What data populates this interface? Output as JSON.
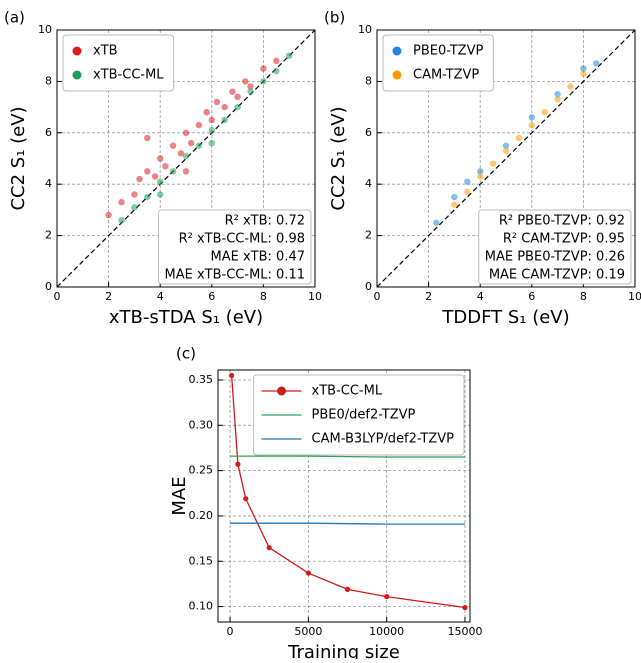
{
  "chart_data": [
    {
      "type": "scatter",
      "label": "(a)",
      "xlabel": "xTB-sTDA S₁ (eV)",
      "ylabel": "CC2 S₁ (eV)",
      "xlim": [
        0,
        10
      ],
      "ylim": [
        0,
        10
      ],
      "xticks": [
        0,
        2,
        4,
        6,
        8,
        10
      ],
      "yticks": [
        0,
        2,
        4,
        6,
        8,
        10
      ],
      "grid": true,
      "legend": "upper left",
      "series": [
        {
          "name": "xTB",
          "color": "#dd1c1c",
          "x": [
            2,
            2.5,
            3,
            3.2,
            3.5,
            3.8,
            4,
            4.2,
            4.5,
            4.8,
            5,
            5.2,
            5.5,
            5.8,
            6,
            6.2,
            6.5,
            6.8,
            7,
            7.3,
            7.5,
            8,
            8.5,
            3.5,
            5
          ],
          "values": [
            2.8,
            3.3,
            3.6,
            4.2,
            4.5,
            4.3,
            5,
            4.7,
            5.5,
            5.2,
            6,
            5.6,
            6.3,
            6.8,
            6.5,
            7.2,
            7,
            7.6,
            7.4,
            8,
            7.8,
            8.5,
            8.8,
            5.8,
            4.5
          ]
        },
        {
          "name": "xTB-CC-ML",
          "color": "#1a9e5a",
          "x": [
            2.5,
            3,
            3.5,
            4,
            4.5,
            5,
            5.5,
            6,
            6.5,
            7,
            7.5,
            8,
            8.5,
            9,
            4,
            6
          ],
          "values": [
            2.6,
            3.1,
            3.5,
            4.1,
            4.5,
            5.1,
            5.5,
            6.1,
            6.5,
            7,
            7.6,
            8,
            8.4,
            9,
            3.6,
            5.6
          ]
        }
      ],
      "annotations": [
        "R² xTB: 0.72",
        "R² xTB-CC-ML: 0.98",
        "MAE xTB: 0.47",
        "MAE xTB-CC-ML: 0.11"
      ]
    },
    {
      "type": "scatter",
      "label": "(b)",
      "xlabel": "TDDFT S₁ (eV)",
      "ylabel": "CC2 S₁ (eV)",
      "xlim": [
        0,
        10
      ],
      "ylim": [
        0,
        10
      ],
      "xticks": [
        0,
        2,
        4,
        6,
        8,
        10
      ],
      "yticks": [
        0,
        2,
        4,
        6,
        8,
        10
      ],
      "grid": true,
      "legend": "upper left",
      "series": [
        {
          "name": "PBE0-TZVP",
          "color": "#1f88e0",
          "x": [
            2.3,
            3,
            3.5,
            4,
            5,
            6,
            7,
            8,
            8.5
          ],
          "values": [
            2.5,
            3.5,
            4.1,
            4.5,
            5.5,
            6.6,
            7.5,
            8.5,
            8.7
          ]
        },
        {
          "name": "CAM-TZVP",
          "color": "#ff9900",
          "x": [
            3,
            3.5,
            4,
            4.5,
            5,
            5.5,
            6,
            6.5,
            7,
            7.5,
            8
          ],
          "values": [
            3.2,
            3.7,
            4.3,
            4.8,
            5.3,
            5.8,
            6.3,
            6.8,
            7.3,
            7.8,
            8.3
          ]
        }
      ],
      "annotations": [
        "R² PBE0-TZVP: 0.92",
        "R² CAM-TZVP: 0.95",
        "MAE PBE0-TZVP: 0.26",
        "MAE CAM-TZVP: 0.19"
      ]
    },
    {
      "type": "line",
      "label": "(c)",
      "xlabel": "Training size",
      "ylabel": "MAE",
      "xlim": [
        -770,
        15320
      ],
      "ylim": [
        0.083,
        0.361
      ],
      "xticks": [
        0,
        5000,
        10000,
        15000
      ],
      "yticks": [
        {
          "value": 0.1,
          "label": "0.10"
        },
        {
          "value": 0.15,
          "label": "0.15"
        },
        {
          "value": 0.2,
          "label": "0.20"
        },
        {
          "value": 0.25,
          "label": "0.25"
        },
        {
          "value": 0.3,
          "label": "0.30"
        },
        {
          "value": 0.35,
          "label": "0.35"
        }
      ],
      "grid": true,
      "legend": "upper right",
      "series": [
        {
          "name": "xTB-CC-ML",
          "color": "#d11a1a",
          "marker": "o",
          "x": [
            100,
            500,
            1000,
            2500,
            5000,
            7500,
            10000,
            15000
          ],
          "values": [
            0.355,
            0.257,
            0.219,
            0.165,
            0.137,
            0.119,
            0.111,
            0.099
          ]
        },
        {
          "name": "PBE0/def2-TZVP",
          "color": "#2ca25f",
          "x": [
            0,
            5000,
            10000,
            15000
          ],
          "values": [
            0.266,
            0.266,
            0.265,
            0.265
          ]
        },
        {
          "name": "CAM-B3LYP/def2-TZVP",
          "color": "#1f77b4",
          "x": [
            0,
            5000,
            10000,
            15000
          ],
          "values": [
            0.192,
            0.192,
            0.191,
            0.191
          ]
        }
      ]
    }
  ]
}
